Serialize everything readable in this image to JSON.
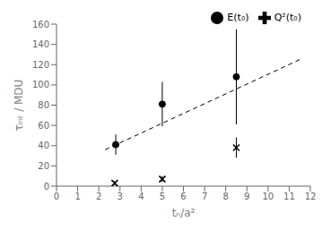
{
  "chart_data": {
    "type": "scatter",
    "xlabel": "tₙ/a²",
    "ylabel": "τᵢₙₜ / MDU",
    "xlim": [
      0,
      12
    ],
    "ylim": [
      0,
      160
    ],
    "xticks": [
      0,
      1,
      2,
      3,
      4,
      5,
      6,
      7,
      8,
      9,
      10,
      11,
      12
    ],
    "yticks": [
      0,
      20,
      40,
      60,
      80,
      100,
      120,
      140,
      160
    ],
    "grid": false,
    "legend": "upper right",
    "series": [
      {
        "type": "line",
        "line_style": "dashed",
        "color": "#000000",
        "x": [
          2.3,
          11.5
        ],
        "values": [
          36.0,
          125.0
        ]
      },
      {
        "name": "E(t₀)",
        "marker": "o",
        "color": "#000000",
        "x": [
          2.8,
          5.0,
          8.5
        ],
        "values": [
          41,
          81,
          108
        ],
        "error_lo": [
          10,
          22,
          47
        ],
        "error_hi": [
          10,
          22,
          47
        ]
      },
      {
        "name": "Q²(t₀)",
        "marker": "x",
        "color": "#000000",
        "x": [
          2.75,
          5.0,
          8.5
        ],
        "values": [
          3,
          7,
          38
        ],
        "error_lo": [
          2,
          3,
          10
        ],
        "error_hi": [
          2,
          3,
          10
        ]
      }
    ]
  }
}
